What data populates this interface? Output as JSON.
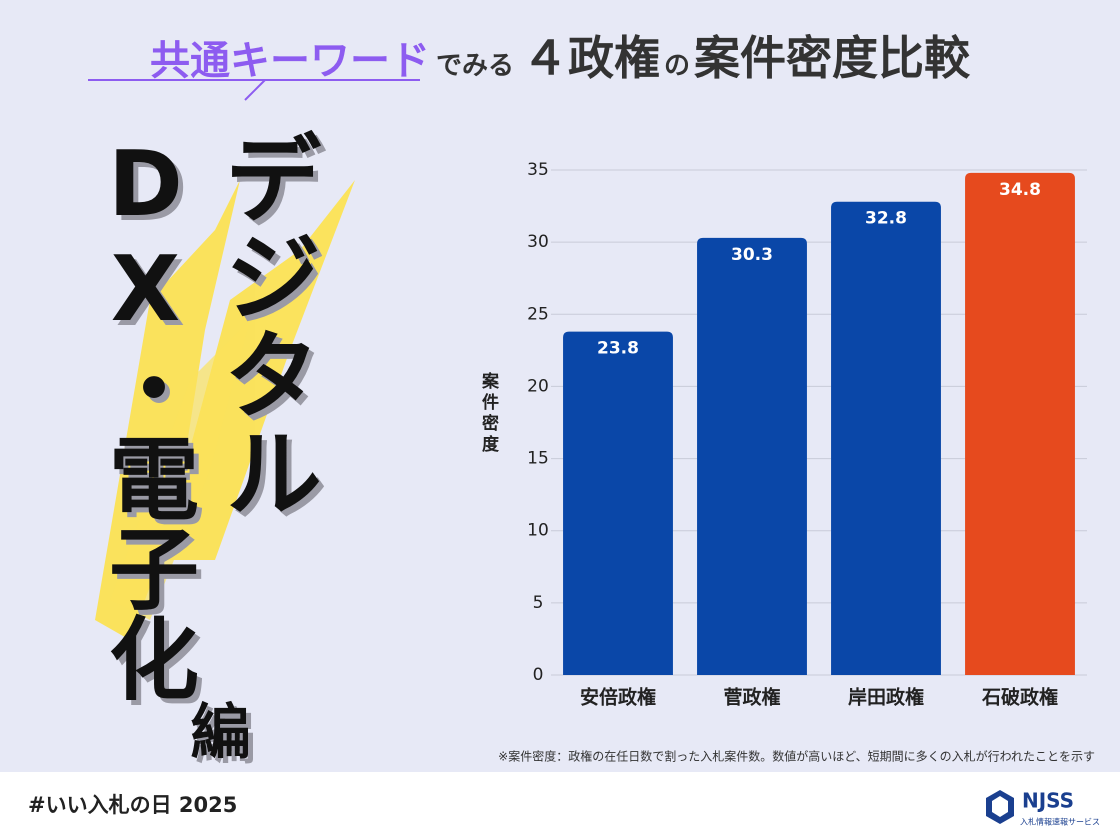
{
  "title": {
    "keyword": "共通キーワード",
    "part1": "でみる",
    "part2": "４政権",
    "part3": "の",
    "part4": "案件密度比較"
  },
  "theme": {
    "line1": "デジタル",
    "line2": "DX・電子化",
    "line3": "編"
  },
  "chart_data": {
    "type": "bar",
    "categories": [
      "安倍政権",
      "菅政権",
      "岸田政権",
      "石破政権"
    ],
    "values": [
      23.8,
      30.3,
      32.8,
      34.8
    ],
    "colors": [
      "#0a47a8",
      "#0a47a8",
      "#0a47a8",
      "#e64a1e"
    ],
    "ylim": [
      0,
      35
    ],
    "yticks": [
      0,
      5,
      10,
      15,
      20,
      25,
      30,
      35
    ],
    "grid": true,
    "y_label": "案件密度",
    "note": "※案件密度：政権の在任日数で割った入札案件数。数値が高いほど、短期間に多くの入札が行われたことを示す"
  },
  "footer": {
    "hashtag": "#いい入札の日 2025",
    "brand": "NJSS",
    "brand_sub": "入札情報速報サービス"
  }
}
